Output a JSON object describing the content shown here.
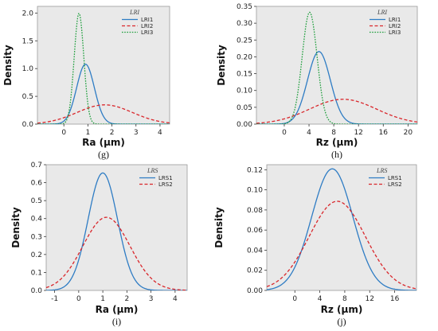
{
  "chart_data": [
    {
      "panel_label": "(g)",
      "type": "line",
      "xlabel": "Ra (μm)",
      "ylabel": "Density",
      "xlim": [
        -1.1,
        4.4
      ],
      "ylim": [
        0,
        2.12
      ],
      "xticks": [
        0,
        1,
        2,
        3,
        4
      ],
      "xtick_labels": [
        "0",
        "1",
        "2",
        "3",
        "4"
      ],
      "yticks": [
        0,
        0.5,
        1.0,
        1.5,
        2.0
      ],
      "ytick_labels": [
        "0.0",
        "0.5",
        "1.0",
        "1.5",
        "2.0"
      ],
      "legend_title": "LRI",
      "legend_position": "top-right",
      "series": [
        {
          "name": "LRI1",
          "color": "#2e7cc4",
          "dash": "solid",
          "mean": 0.9,
          "sd": 0.37
        },
        {
          "name": "LRI2",
          "color": "#d9262b",
          "dash": "dashed",
          "mean": 1.7,
          "sd": 1.15
        },
        {
          "name": "LRI3",
          "color": "#1e9e3c",
          "dash": "dotted",
          "mean": 0.63,
          "sd": 0.2
        }
      ]
    },
    {
      "panel_label": "(h)",
      "type": "line",
      "xlabel": "Rz (μm)",
      "ylabel": "Density",
      "xlim": [
        -4.5,
        21.5
      ],
      "ylim": [
        0,
        0.35
      ],
      "xticks": [
        0,
        4,
        8,
        12,
        16,
        20
      ],
      "xtick_labels": [
        "0",
        "4",
        "8",
        "12",
        "16",
        "20"
      ],
      "yticks": [
        0,
        0.05,
        0.1,
        0.15,
        0.2,
        0.25,
        0.3,
        0.35
      ],
      "ytick_labels": [
        "0.00",
        "0.05",
        "0.10",
        "0.15",
        "0.20",
        "0.25",
        "0.30",
        "0.35"
      ],
      "legend_title": "LRI",
      "legend_position": "top-right",
      "series": [
        {
          "name": "LRI1",
          "color": "#2e7cc4",
          "dash": "solid",
          "mean": 5.6,
          "sd": 1.85
        },
        {
          "name": "LRI2",
          "color": "#d9262b",
          "dash": "dashed",
          "mean": 9.5,
          "sd": 5.4
        },
        {
          "name": "LRI3",
          "color": "#1e9e3c",
          "dash": "dotted",
          "mean": 4.1,
          "sd": 1.2
        }
      ]
    },
    {
      "panel_label": "(i)",
      "type": "line",
      "xlabel": "Ra (μm)",
      "ylabel": "Density",
      "xlim": [
        -1.35,
        4.5
      ],
      "ylim": [
        0,
        0.7
      ],
      "xticks": [
        -1,
        0,
        1,
        2,
        3,
        4
      ],
      "xtick_labels": [
        "-1",
        "0",
        "1",
        "2",
        "3",
        "4"
      ],
      "yticks": [
        0,
        0.1,
        0.2,
        0.3,
        0.4,
        0.5,
        0.6,
        0.7
      ],
      "ytick_labels": [
        "0.0",
        "0.1",
        "0.2",
        "0.3",
        "0.4",
        "0.5",
        "0.6",
        "0.7"
      ],
      "legend_title": "LRS",
      "legend_position": "top-right",
      "series": [
        {
          "name": "LRS1",
          "color": "#2e7cc4",
          "dash": "solid",
          "mean": 1.0,
          "sd": 0.61
        },
        {
          "name": "LRS2",
          "color": "#d9262b",
          "dash": "dashed",
          "mean": 1.15,
          "sd": 0.98
        }
      ]
    },
    {
      "panel_label": "(j)",
      "type": "line",
      "xlabel": "Rz (μm)",
      "ylabel": "Density",
      "xlim": [
        -4.5,
        19.5
      ],
      "ylim": [
        0,
        0.125
      ],
      "xticks": [
        0,
        4,
        8,
        12,
        16
      ],
      "xtick_labels": [
        "0",
        "4",
        "8",
        "12",
        "16"
      ],
      "yticks": [
        0,
        0.02,
        0.04,
        0.06,
        0.08,
        0.1,
        0.12
      ],
      "ytick_labels": [
        "0.00",
        "0.02",
        "0.04",
        "0.06",
        "0.08",
        "0.10",
        "0.12"
      ],
      "legend_title": "LRS",
      "legend_position": "top-right",
      "series": [
        {
          "name": "LRS1",
          "color": "#2e7cc4",
          "dash": "solid",
          "mean": 6.0,
          "sd": 3.3
        },
        {
          "name": "LRS2",
          "color": "#d9262b",
          "dash": "dashed",
          "mean": 6.8,
          "sd": 4.5
        }
      ]
    }
  ]
}
